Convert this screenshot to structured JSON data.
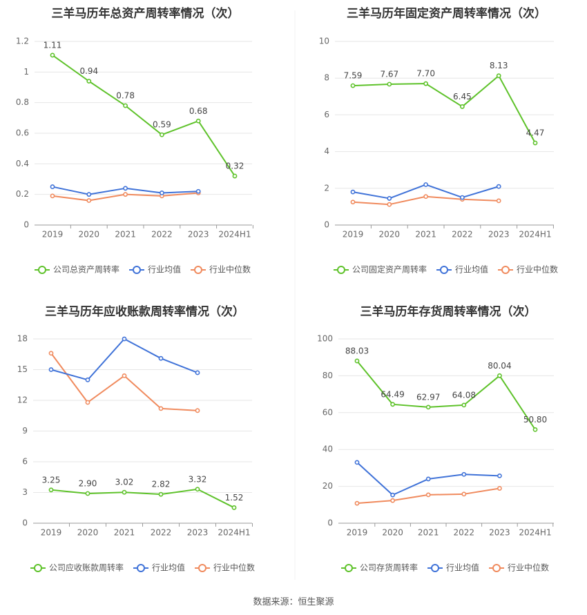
{
  "footer": {
    "source": "数据来源：恒生聚源"
  },
  "colors": {
    "company": "#5ec22a",
    "avg": "#3f72d8",
    "median": "#f08a5d",
    "grid": "#e6e6e6",
    "axis": "#999999",
    "text": "#333333"
  },
  "chart_data": [
    {
      "type": "line",
      "title": "三羊马历年总资产周转率情况（次）",
      "categories": [
        "2019",
        "2020",
        "2021",
        "2022",
        "2023",
        "2024H1"
      ],
      "ylim": [
        0,
        1.2
      ],
      "yticks": [
        "0",
        "0.2",
        "0.4",
        "0.6",
        "0.8",
        "1",
        "1.2"
      ],
      "series": [
        {
          "name": "公司总资产周转率",
          "values": [
            1.11,
            0.94,
            0.78,
            0.59,
            0.68,
            0.32
          ],
          "labels": [
            "1.11",
            "0.94",
            "0.78",
            "0.59",
            "0.68",
            "0.32"
          ]
        },
        {
          "name": "行业均值",
          "values": [
            0.25,
            0.2,
            0.24,
            0.21,
            0.22,
            null
          ]
        },
        {
          "name": "行业中位数",
          "values": [
            0.19,
            0.16,
            0.2,
            0.19,
            0.21,
            null
          ]
        }
      ],
      "grid": true,
      "legend": "bottom"
    },
    {
      "type": "line",
      "title": "三羊马历年固定资产周转率情况（次）",
      "categories": [
        "2019",
        "2020",
        "2021",
        "2022",
        "2023",
        "2024H1"
      ],
      "ylim": [
        0,
        10
      ],
      "yticks": [
        "0",
        "2",
        "4",
        "6",
        "8",
        "10"
      ],
      "series": [
        {
          "name": "公司固定资产周转率",
          "values": [
            7.59,
            7.67,
            7.7,
            6.45,
            8.13,
            4.47
          ],
          "labels": [
            "7.59",
            "7.67",
            "7.70",
            "6.45",
            "8.13",
            "4.47"
          ]
        },
        {
          "name": "行业均值",
          "values": [
            1.8,
            1.45,
            2.2,
            1.5,
            2.1,
            null
          ]
        },
        {
          "name": "行业中位数",
          "values": [
            1.25,
            1.12,
            1.55,
            1.4,
            1.32,
            null
          ]
        }
      ],
      "grid": true,
      "legend": "bottom"
    },
    {
      "type": "line",
      "title": "三羊马历年应收账款周转率情况（次）",
      "categories": [
        "2019",
        "2020",
        "2021",
        "2022",
        "2023",
        "2024H1"
      ],
      "ylim": [
        0,
        18
      ],
      "yticks": [
        "0",
        "3",
        "6",
        "9",
        "12",
        "15",
        "18"
      ],
      "series": [
        {
          "name": "公司应收账款周转率",
          "values": [
            3.25,
            2.9,
            3.02,
            2.82,
            3.32,
            1.52
          ],
          "labels": [
            "3.25",
            "2.90",
            "3.02",
            "2.82",
            "3.32",
            "1.52"
          ]
        },
        {
          "name": "行业均值",
          "values": [
            15.0,
            14.0,
            18.0,
            16.1,
            14.7,
            null
          ]
        },
        {
          "name": "行业中位数",
          "values": [
            16.6,
            11.8,
            14.4,
            11.2,
            11.0,
            null
          ]
        }
      ],
      "grid": true,
      "legend": "bottom"
    },
    {
      "type": "line",
      "title": "三羊马历年存货周转率情况（次）",
      "categories": [
        "2019",
        "2020",
        "2021",
        "2022",
        "2023",
        "2024H1"
      ],
      "ylim": [
        0,
        100
      ],
      "yticks": [
        "0",
        "20",
        "40",
        "60",
        "80",
        "100"
      ],
      "series": [
        {
          "name": "公司存货周转率",
          "values": [
            88.03,
            64.49,
            62.97,
            64.08,
            80.04,
            50.8
          ],
          "labels": [
            "88.03",
            "64.49",
            "62.97",
            "64.08",
            "80.04",
            "50.80"
          ]
        },
        {
          "name": "行业均值",
          "values": [
            33.0,
            15.3,
            24.0,
            26.5,
            25.7,
            null
          ]
        },
        {
          "name": "行业中位数",
          "values": [
            10.8,
            12.3,
            15.4,
            15.8,
            18.9,
            null
          ]
        }
      ],
      "grid": true,
      "legend": "bottom"
    }
  ]
}
